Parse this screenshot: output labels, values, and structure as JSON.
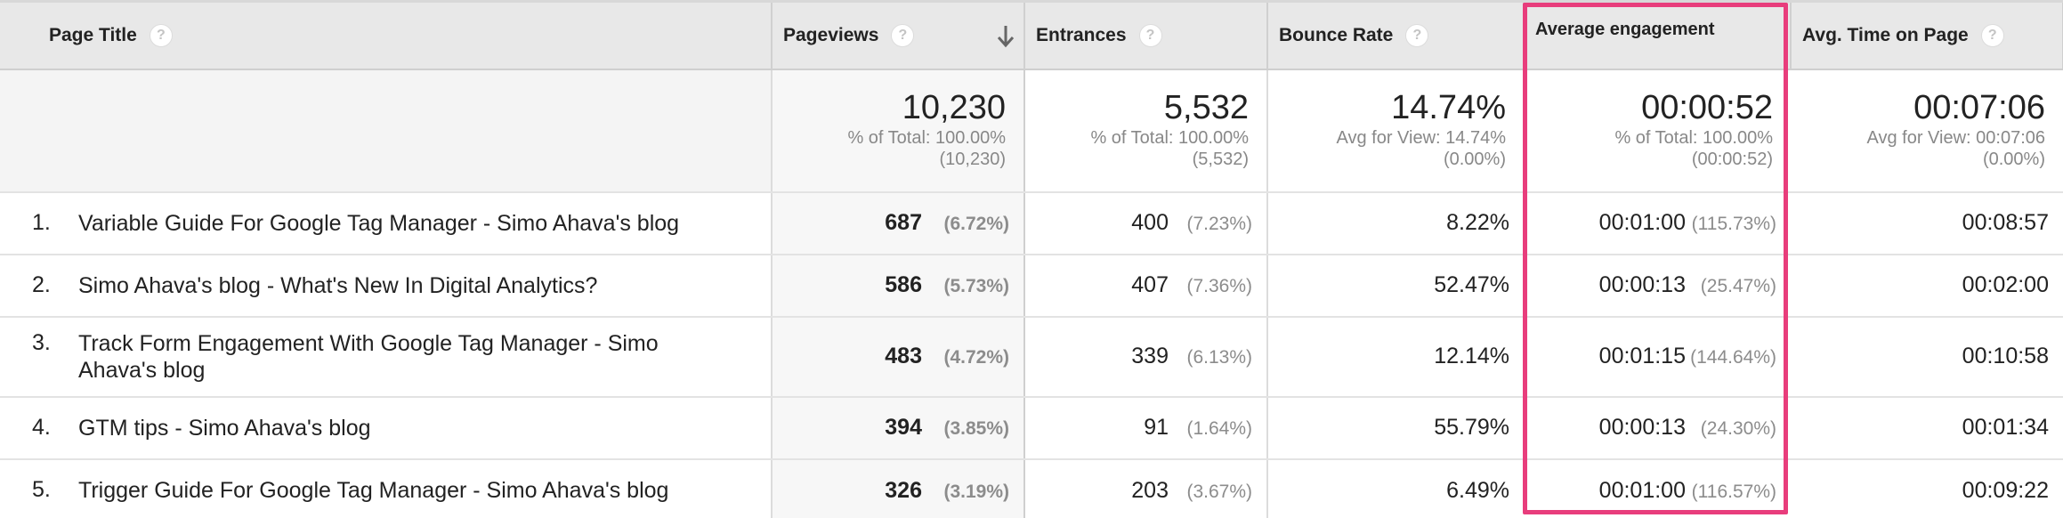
{
  "columns": {
    "page_title": "Page Title",
    "pageviews": "Pageviews",
    "entrances": "Entrances",
    "bounce_rate": "Bounce Rate",
    "avg_engagement": "Average engagement",
    "avg_time_on_page": "Avg. Time on Page",
    "help_glyph": "?"
  },
  "sort": {
    "column": "pageviews",
    "direction": "descending",
    "icon": "arrow-down-icon"
  },
  "totals": {
    "pageviews": {
      "value": "10,230",
      "sub1": "% of Total: 100.00%",
      "sub2": "(10,230)"
    },
    "entrances": {
      "value": "5,532",
      "sub1": "% of Total: 100.00%",
      "sub2": "(5,532)"
    },
    "bounce_rate": {
      "value": "14.74%",
      "sub1": "Avg for View: 14.74%",
      "sub2": "(0.00%)"
    },
    "avg_engagement": {
      "value": "00:00:52",
      "sub1": "% of Total: 100.00%",
      "sub2": "(00:00:52)"
    },
    "avg_time_on_page": {
      "value": "00:07:06",
      "sub1": "Avg for View: 00:07:06",
      "sub2": "(0.00%)"
    }
  },
  "rows": [
    {
      "rank": "1.",
      "title": "Variable Guide For Google Tag Manager - Simo Ahava's blog",
      "pageviews": "687",
      "pageviews_pct": "(6.72%)",
      "entrances": "400",
      "entrances_pct": "(7.23%)",
      "bounce_rate": "8.22%",
      "avg_engagement": "00:01:00",
      "avg_engagement_pct": "(115.73%)",
      "avg_time_on_page": "00:08:57"
    },
    {
      "rank": "2.",
      "title": "Simo Ahava's blog - What's New In Digital Analytics?",
      "pageviews": "586",
      "pageviews_pct": "(5.73%)",
      "entrances": "407",
      "entrances_pct": "(7.36%)",
      "bounce_rate": "52.47%",
      "avg_engagement": "00:00:13",
      "avg_engagement_pct": "(25.47%)",
      "avg_time_on_page": "00:02:00"
    },
    {
      "rank": "3.",
      "title": "Track Form Engagement With Google Tag Manager - Simo Ahava's blog",
      "pageviews": "483",
      "pageviews_pct": "(4.72%)",
      "entrances": "339",
      "entrances_pct": "(6.13%)",
      "bounce_rate": "12.14%",
      "avg_engagement": "00:01:15",
      "avg_engagement_pct": "(144.64%)",
      "avg_time_on_page": "00:10:58"
    },
    {
      "rank": "4.",
      "title": "GTM tips - Simo Ahava's blog",
      "pageviews": "394",
      "pageviews_pct": "(3.85%)",
      "entrances": "91",
      "entrances_pct": "(1.64%)",
      "bounce_rate": "55.79%",
      "avg_engagement": "00:00:13",
      "avg_engagement_pct": "(24.30%)",
      "avg_time_on_page": "00:01:34"
    },
    {
      "rank": "5.",
      "title": "Trigger Guide For Google Tag Manager - Simo Ahava's blog",
      "pageviews": "326",
      "pageviews_pct": "(3.19%)",
      "entrances": "203",
      "entrances_pct": "(3.67%)",
      "bounce_rate": "6.49%",
      "avg_engagement": "00:01:00",
      "avg_engagement_pct": "(116.57%)",
      "avg_time_on_page": "00:09:22"
    }
  ],
  "highlight": {
    "column": "avg_engagement",
    "color": "#e83d7c"
  }
}
